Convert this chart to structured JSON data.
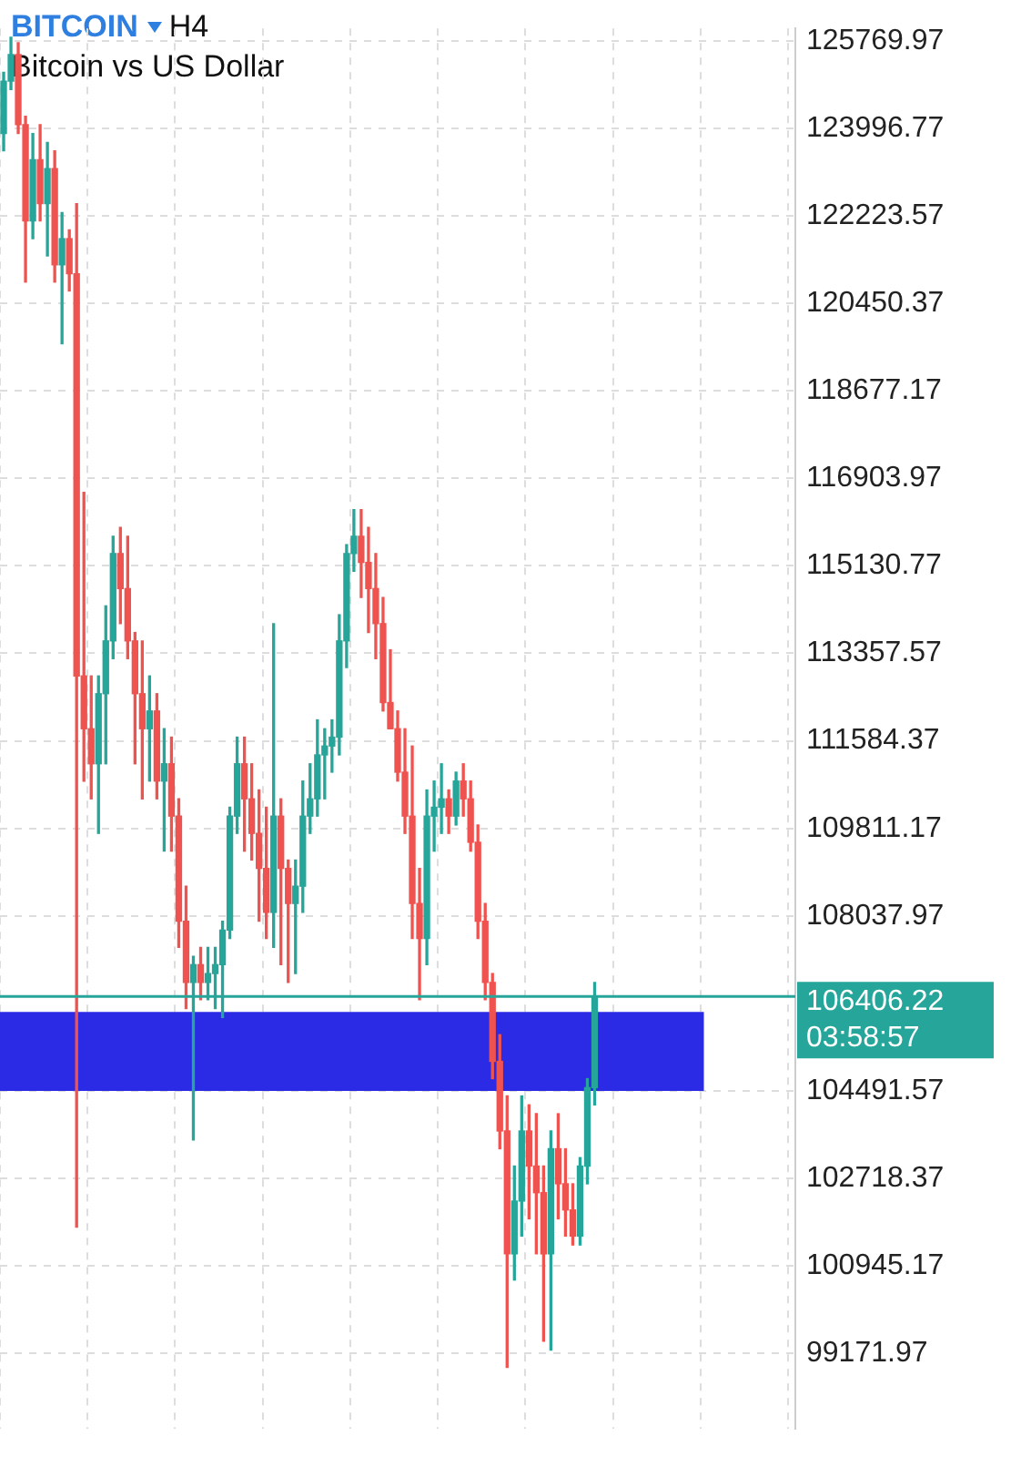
{
  "chart_data": {
    "type": "candlestick",
    "title": "BITCOIN",
    "subtitle": "Bitcoin vs US Dollar",
    "annotations": [
      "H4",
      "03:58:57"
    ],
    "categories": [
      null,
      null,
      null,
      null,
      null,
      null,
      null,
      null,
      null,
      null,
      null,
      null,
      null,
      null,
      null,
      null,
      null,
      null,
      null,
      null,
      null,
      null,
      null,
      null,
      null,
      null,
      null,
      null,
      null,
      null,
      null,
      null,
      null,
      null,
      null,
      null,
      null,
      null,
      null,
      null,
      null,
      null,
      null,
      null,
      null,
      null,
      null,
      null,
      null,
      null,
      null,
      null,
      null,
      null,
      null,
      null,
      null,
      null,
      null,
      null,
      null,
      null,
      null,
      null,
      null,
      null,
      null,
      null,
      null,
      null,
      null,
      null,
      null,
      null,
      null,
      null,
      null,
      null,
      null,
      null,
      null,
      null,
      null,
      null,
      null,
      null,
      null,
      null,
      null,
      null,
      null,
      null,
      null,
      null,
      null,
      null,
      null,
      null,
      null,
      null,
      null,
      null,
      null,
      null,
      null,
      null,
      null,
      null,
      null
    ],
    "ohlc": [
      [
        123890,
        125130,
        123540,
        124950
      ],
      [
        124950,
        125840,
        124780,
        125490
      ],
      [
        125490,
        125730,
        123890,
        124070
      ],
      [
        124070,
        124240,
        120880,
        122120
      ],
      [
        122120,
        123890,
        121760,
        123360
      ],
      [
        123360,
        124070,
        122120,
        122470
      ],
      [
        122470,
        123710,
        121410,
        123180
      ],
      [
        123180,
        123540,
        120880,
        121230
      ],
      [
        121230,
        122290,
        119630,
        121760
      ],
      [
        121760,
        121940,
        120700,
        121050
      ],
      [
        121050,
        122470,
        101730,
        112900
      ],
      [
        112900,
        116620,
        110770,
        111830
      ],
      [
        111830,
        112900,
        110410,
        111120
      ],
      [
        111120,
        112900,
        109710,
        112540
      ],
      [
        112540,
        114320,
        111120,
        113610
      ],
      [
        113610,
        115730,
        113250,
        115380
      ],
      [
        115380,
        115910,
        113960,
        114670
      ],
      [
        114670,
        115730,
        113250,
        113610
      ],
      [
        113610,
        113780,
        111120,
        112540
      ],
      [
        112540,
        113610,
        110410,
        111830
      ],
      [
        111830,
        112900,
        110770,
        112190
      ],
      [
        112190,
        112540,
        110410,
        110770
      ],
      [
        110770,
        111830,
        109350,
        111120
      ],
      [
        111120,
        111660,
        109350,
        110060
      ],
      [
        110060,
        110410,
        107400,
        107930
      ],
      [
        107930,
        108640,
        106160,
        106690
      ],
      [
        106690,
        107220,
        103500,
        107050
      ],
      [
        107050,
        107400,
        106340,
        106690
      ],
      [
        106690,
        107400,
        106340,
        106870
      ],
      [
        106870,
        107400,
        106160,
        107050
      ],
      [
        107050,
        107930,
        105980,
        107750
      ],
      [
        107750,
        110240,
        107580,
        110060
      ],
      [
        110060,
        111660,
        109710,
        111120
      ],
      [
        111120,
        111660,
        109350,
        110410
      ],
      [
        110410,
        111120,
        109170,
        109710
      ],
      [
        109710,
        110590,
        107930,
        109000
      ],
      [
        109000,
        110240,
        107580,
        108110
      ],
      [
        108110,
        113960,
        107400,
        110060
      ],
      [
        110060,
        110410,
        107050,
        109000
      ],
      [
        109000,
        109170,
        106690,
        108290
      ],
      [
        108290,
        109170,
        106870,
        108640
      ],
      [
        108640,
        110770,
        108110,
        110060
      ],
      [
        110060,
        111120,
        109710,
        110410
      ],
      [
        110410,
        112010,
        110060,
        111300
      ],
      [
        111300,
        111830,
        110410,
        111480
      ],
      [
        111480,
        112010,
        110950,
        111660
      ],
      [
        111660,
        114140,
        111300,
        113610
      ],
      [
        113610,
        115560,
        113070,
        115380
      ],
      [
        115380,
        116270,
        115020,
        115730
      ],
      [
        115730,
        116270,
        114490,
        115200
      ],
      [
        115200,
        115910,
        113780,
        114670
      ],
      [
        114670,
        115380,
        113250,
        113960
      ],
      [
        113960,
        114490,
        112190,
        112360
      ],
      [
        112360,
        113430,
        111830,
        111830
      ],
      [
        111830,
        112190,
        110770,
        110950
      ],
      [
        110950,
        111830,
        109710,
        110060
      ],
      [
        110060,
        111480,
        107580,
        108290
      ],
      [
        108290,
        109000,
        106340,
        107580
      ],
      [
        107580,
        110590,
        107050,
        110060
      ],
      [
        110060,
        110770,
        109350,
        110240
      ],
      [
        110240,
        111120,
        109710,
        110410
      ],
      [
        110410,
        110590,
        109710,
        110060
      ],
      [
        110060,
        110950,
        109880,
        110770
      ],
      [
        110770,
        111120,
        110060,
        110410
      ],
      [
        110410,
        110770,
        109350,
        109530
      ],
      [
        109530,
        109880,
        107580,
        107930
      ],
      [
        107930,
        108290,
        106340,
        106690
      ],
      [
        106690,
        106870,
        104740,
        105090
      ],
      [
        105090,
        105630,
        103320,
        103680
      ],
      [
        103680,
        104390,
        98890,
        101190
      ],
      [
        101190,
        102970,
        100660,
        102260
      ],
      [
        102260,
        104390,
        101550,
        103680
      ],
      [
        103680,
        104210,
        101900,
        102970
      ],
      [
        102970,
        104030,
        101190,
        102430
      ],
      [
        102430,
        102970,
        99420,
        101190
      ],
      [
        101190,
        103680,
        99240,
        103320
      ],
      [
        103320,
        104030,
        101900,
        102610
      ],
      [
        102610,
        103320,
        101550,
        102080
      ],
      [
        102080,
        102610,
        101370,
        101550
      ],
      [
        101550,
        103140,
        101370,
        102970
      ],
      [
        102970,
        104740,
        102610,
        104560
      ],
      [
        104560,
        106690,
        104210,
        106406.22
      ],
      null,
      null,
      null,
      null,
      null,
      null,
      null,
      null,
      null,
      null,
      null,
      null,
      null,
      null,
      null,
      null,
      null,
      null,
      null,
      null,
      null,
      null,
      null,
      null,
      null,
      null,
      null
    ],
    "ylim": [
      97650,
      126020
    ],
    "yticks": [
      125769.97,
      123996.77,
      122223.57,
      120450.37,
      118677.17,
      116903.97,
      115130.77,
      113357.57,
      111584.37,
      109811.17,
      108037.97,
      104491.57,
      102718.37,
      100945.17,
      99171.97
    ],
    "ref_lines": [
      {
        "axis": "y",
        "value": 106406.22,
        "label": "106406.22",
        "color": "#26a69a"
      }
    ],
    "bands": [
      {
        "axis": "y",
        "from": 104490,
        "to": 106090,
        "color": "#2b2be6"
      }
    ],
    "grid": true,
    "legend": false,
    "tick_labels": "y"
  }
}
